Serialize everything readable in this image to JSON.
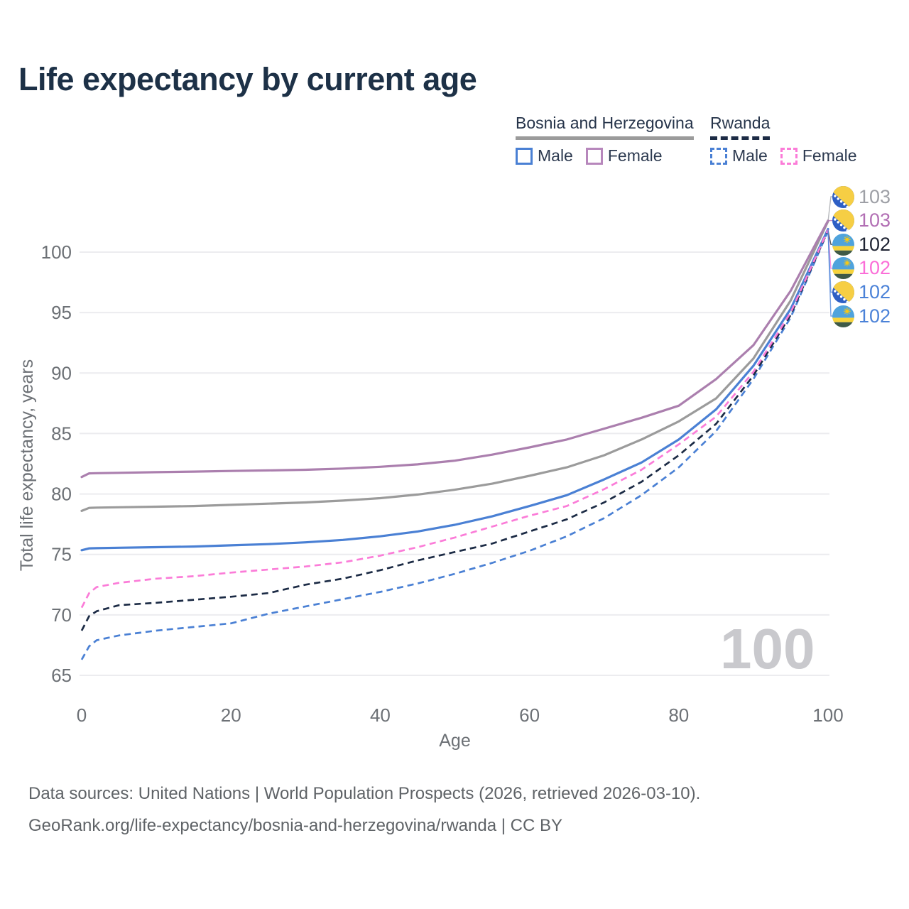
{
  "title": "Life expectancy by current age",
  "watermark": "100",
  "footer": {
    "line1": "Data sources: United Nations | World Population Prospects (2026, retrieved 2026-03-10).",
    "line2": "GeoRank.org/life-expectancy/bosnia-and-herzegovina/rwanda | CC BY"
  },
  "legend": {
    "groups": [
      {
        "label": "Bosnia and Herzegovina",
        "underline_style": "solid",
        "underline_color": "#9b9b9b",
        "items": [
          {
            "label": "Male",
            "color": "#4a80d4",
            "dashed": false
          },
          {
            "label": "Female",
            "color": "#b787bc",
            "dashed": false
          }
        ]
      },
      {
        "label": "Rwanda",
        "underline_style": "dashed",
        "underline_color": "#1c2b45",
        "items": [
          {
            "label": "Male",
            "color": "#4a80d4",
            "dashed": true
          },
          {
            "label": "Female",
            "color": "#fb7cd8",
            "dashed": true
          }
        ]
      }
    ]
  },
  "end_labels": [
    {
      "text": "103",
      "country": "bosnia",
      "color": "#9ea0a6",
      "series": "bosnia_all"
    },
    {
      "text": "103",
      "country": "bosnia",
      "color": "#b26fb4",
      "series": "bosnia_female"
    },
    {
      "text": "102",
      "country": "rwanda",
      "color": "#1f2433",
      "series": "rwanda_all"
    },
    {
      "text": "102",
      "country": "rwanda",
      "color": "#fb6ed8",
      "series": "rwanda_female"
    },
    {
      "text": "102",
      "country": "bosnia",
      "color": "#4b82d8",
      "series": "bosnia_male"
    },
    {
      "text": "102",
      "country": "rwanda",
      "color": "#4b82d8",
      "series": "rwanda_male"
    }
  ],
  "flag_colors": {
    "bosnia": {
      "field": "#2e5fc5",
      "triangle": "#f6ce44",
      "stars": "#ffffff"
    },
    "rwanda": {
      "sky": "#4fa3dc",
      "band": "#f6d33c",
      "green": "#3f5a47",
      "sun": "#f8c913"
    }
  },
  "chart_data": {
    "type": "line",
    "title": "Life expectancy by current age",
    "xlabel": "Age",
    "ylabel": "Total life expectancy, years",
    "x_ticks": [
      0,
      20,
      40,
      60,
      80,
      100
    ],
    "y_ticks": [
      65,
      70,
      75,
      80,
      85,
      90,
      95,
      100
    ],
    "xlim": [
      0,
      100
    ],
    "ylim": [
      65,
      103
    ],
    "grid": "horizontal",
    "legend_position": "top-right",
    "x": [
      0,
      1,
      2,
      5,
      10,
      15,
      20,
      25,
      30,
      35,
      40,
      45,
      50,
      55,
      60,
      65,
      70,
      75,
      80,
      85,
      90,
      95,
      100
    ],
    "series": [
      {
        "key": "bosnia_all",
        "name": "Bosnia and Herzegovina — Both sexes",
        "color": "#9b9b9b",
        "style": "solid",
        "values": [
          78.6,
          78.85,
          78.87,
          78.9,
          78.95,
          79.0,
          79.1,
          79.2,
          79.3,
          79.45,
          79.65,
          79.95,
          80.35,
          80.85,
          81.5,
          82.2,
          83.2,
          84.5,
          86.0,
          87.9,
          91.2,
          96.0,
          102.55
        ]
      },
      {
        "key": "bosnia_female",
        "name": "Bosnia and Herzegovina — Female",
        "color": "#ab7fae",
        "style": "solid",
        "values": [
          81.4,
          81.7,
          81.72,
          81.75,
          81.8,
          81.85,
          81.9,
          81.95,
          82.0,
          82.1,
          82.25,
          82.45,
          82.75,
          83.25,
          83.85,
          84.5,
          85.4,
          86.3,
          87.3,
          89.5,
          92.3,
          96.8,
          102.6
        ]
      },
      {
        "key": "bosnia_male",
        "name": "Bosnia and Herzegovina — Male",
        "color": "#4a80d4",
        "style": "solid",
        "values": [
          75.35,
          75.5,
          75.52,
          75.55,
          75.6,
          75.65,
          75.75,
          75.85,
          76.0,
          76.2,
          76.5,
          76.9,
          77.45,
          78.15,
          79.0,
          79.9,
          81.2,
          82.6,
          84.5,
          87.0,
          90.6,
          95.3,
          101.9
        ]
      },
      {
        "key": "rwanda_male",
        "name": "Rwanda — Male",
        "color": "#4a80d4",
        "style": "dashed",
        "values": [
          66.3,
          67.4,
          67.9,
          68.3,
          68.7,
          69.0,
          69.3,
          70.1,
          70.7,
          71.3,
          71.9,
          72.6,
          73.4,
          74.3,
          75.3,
          76.5,
          78.0,
          79.9,
          82.2,
          85.2,
          89.5,
          94.6,
          101.75
        ]
      },
      {
        "key": "rwanda_all",
        "name": "Rwanda — Both sexes",
        "color": "#1c2b45",
        "style": "dashed",
        "values": [
          68.7,
          69.9,
          70.3,
          70.8,
          71.0,
          71.25,
          71.5,
          71.8,
          72.5,
          73.0,
          73.7,
          74.5,
          75.2,
          75.9,
          76.9,
          77.9,
          79.3,
          81.0,
          83.2,
          85.8,
          89.8,
          94.8,
          101.8
        ]
      },
      {
        "key": "rwanda_female",
        "name": "Rwanda — Female",
        "color": "#fb7cd8",
        "style": "dashed",
        "values": [
          70.6,
          71.8,
          72.3,
          72.65,
          73.0,
          73.2,
          73.5,
          73.75,
          74.0,
          74.35,
          74.9,
          75.6,
          76.4,
          77.3,
          78.2,
          79.0,
          80.4,
          82.0,
          84.1,
          86.4,
          90.1,
          95.0,
          101.85
        ]
      }
    ]
  }
}
